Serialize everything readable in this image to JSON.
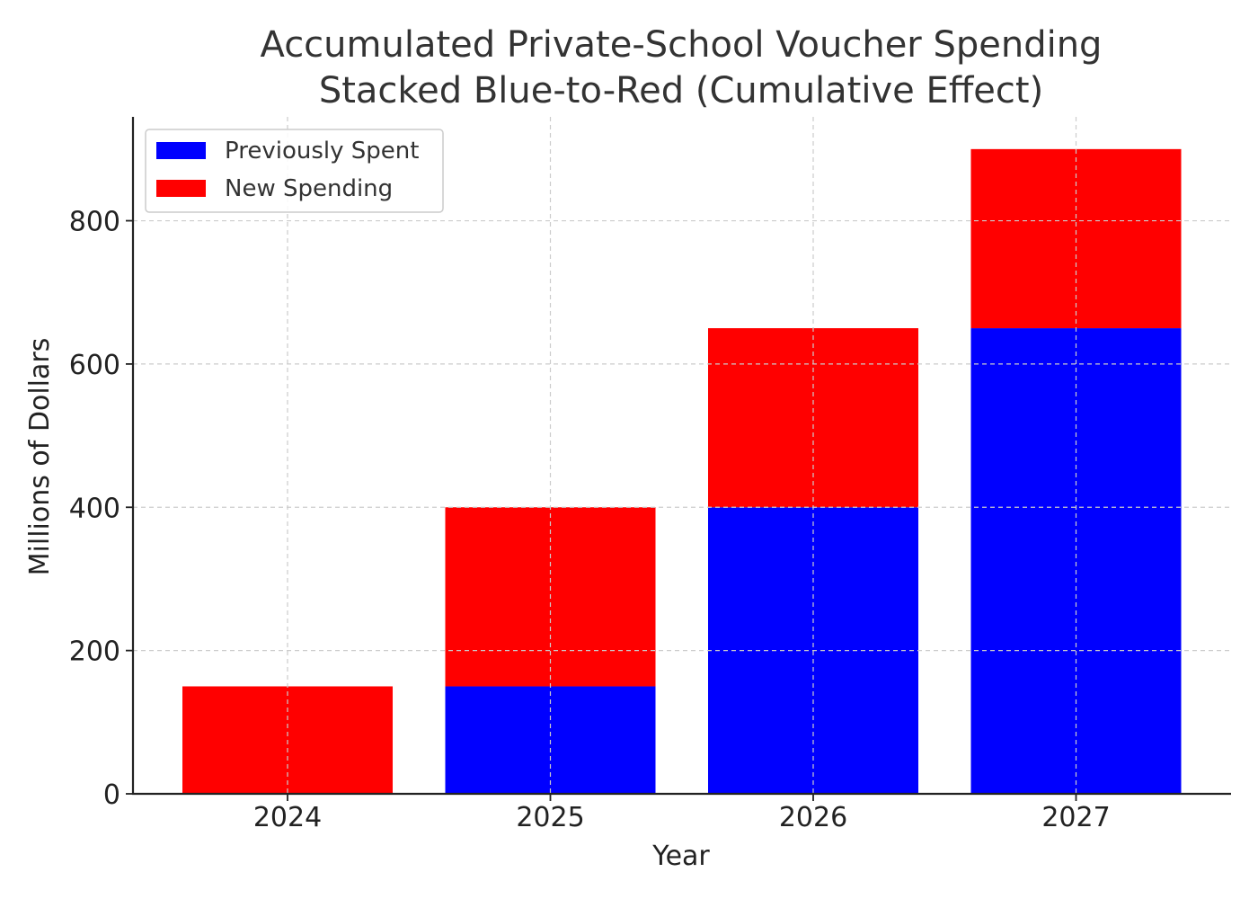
{
  "chart_data": {
    "type": "bar",
    "stacked": true,
    "title_lines": [
      "Accumulated Private-School Voucher Spending",
      "Stacked Blue-to-Red (Cumulative Effect)"
    ],
    "xlabel": "Year",
    "ylabel": "Millions of Dollars",
    "categories": [
      "2024",
      "2025",
      "2026",
      "2027"
    ],
    "series": [
      {
        "name": "Previously Spent",
        "color": "#0000ff",
        "values": [
          0,
          150,
          400,
          650
        ]
      },
      {
        "name": "New Spending",
        "color": "#ff0000",
        "values": [
          150,
          250,
          250,
          250
        ]
      }
    ],
    "ylim": [
      0,
      945
    ],
    "yticks": [
      0,
      200,
      400,
      600,
      800
    ],
    "grid": true,
    "legend_position": "top-left"
  }
}
